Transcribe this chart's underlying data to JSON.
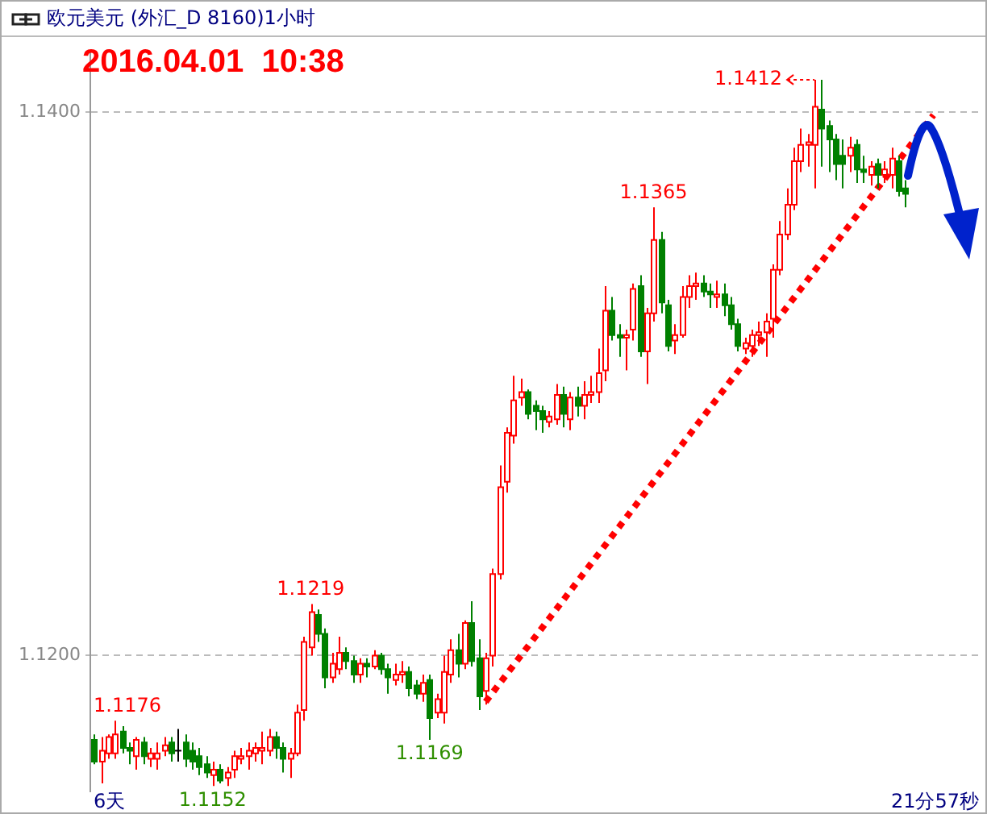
{
  "chart_data": {
    "type": "candlestick",
    "title": "欧元美元 (外汇_D 8160)1小时",
    "categories": [
      null,
      null,
      null,
      null,
      null,
      null,
      null,
      null,
      null,
      null,
      null,
      null,
      null,
      null,
      null,
      null,
      null,
      null,
      null,
      null,
      null,
      null,
      null,
      null,
      null,
      null,
      null,
      null,
      null,
      null,
      null,
      null,
      null,
      null,
      null,
      null,
      null,
      null,
      null,
      null,
      null,
      null,
      null,
      null,
      null,
      null,
      null,
      null,
      null,
      null,
      null,
      null,
      null,
      null,
      null,
      null,
      null,
      null,
      null,
      null,
      null,
      null,
      null,
      null,
      null,
      null,
      null,
      null,
      null,
      null,
      null,
      null,
      null,
      null,
      null,
      null,
      null,
      null,
      null,
      null,
      null,
      null,
      null,
      null,
      null,
      null,
      null,
      null,
      null,
      null,
      null,
      null,
      null,
      null,
      null,
      null,
      null,
      null,
      null,
      null,
      null,
      null,
      null,
      null,
      null,
      null,
      null,
      null,
      null,
      null,
      null,
      null,
      null,
      null,
      null,
      null,
      null,
      null,
      null,
      null,
      null,
      null,
      null,
      null,
      null,
      null,
      null
    ],
    "ohlc": [
      [
        1.1169,
        1.1171,
        1.116,
        1.1161
      ],
      [
        1.1161,
        1.117,
        1.1153,
        1.1165
      ],
      [
        1.1164,
        1.1171,
        1.1162,
        1.117
      ],
      [
        1.1164,
        1.1176,
        1.1162,
        1.1171
      ],
      [
        1.1172,
        1.1174,
        1.1164,
        1.1166
      ],
      [
        1.1166,
        1.1168,
        1.116,
        1.1165
      ],
      [
        1.1163,
        1.117,
        1.1158,
        1.1169
      ],
      [
        1.1168,
        1.117,
        1.116,
        1.1163
      ],
      [
        1.1162,
        1.1166,
        1.1159,
        1.1164
      ],
      [
        1.1162,
        1.1168,
        1.1158,
        1.1164
      ],
      [
        1.1165,
        1.117,
        1.1163,
        1.1167
      ],
      [
        1.1168,
        1.117,
        1.1161,
        1.1164
      ],
      [
        1.1165,
        1.1173,
        1.1161,
        1.1165
      ],
      [
        1.1168,
        1.1171,
        1.1159,
        1.1162
      ],
      [
        1.1165,
        1.1168,
        1.1158,
        1.1161
      ],
      [
        1.1163,
        1.1166,
        1.1156,
        1.1159
      ],
      [
        1.116,
        1.1163,
        1.1155,
        1.1157
      ],
      [
        1.1156,
        1.1161,
        1.1152,
        1.1158
      ],
      [
        1.1158,
        1.116,
        1.1153,
        1.1154
      ],
      [
        1.1155,
        1.1159,
        1.1152,
        1.1157
      ],
      [
        1.1158,
        1.1165,
        1.1155,
        1.1163
      ],
      [
        1.1162,
        1.1166,
        1.116,
        1.1163
      ],
      [
        1.1163,
        1.1168,
        1.1158,
        1.1165
      ],
      [
        1.1164,
        1.1168,
        1.1161,
        1.1166
      ],
      [
        1.1165,
        1.1172,
        1.116,
        1.1166
      ],
      [
        1.1165,
        1.1173,
        1.1163,
        1.117
      ],
      [
        1.117,
        1.1172,
        1.1162,
        1.1166
      ],
      [
        1.1166,
        1.1168,
        1.1157,
        1.1162
      ],
      [
        1.1162,
        1.1166,
        1.1155,
        1.1164
      ],
      [
        1.1164,
        1.1182,
        1.1163,
        1.1179
      ],
      [
        1.118,
        1.1207,
        1.1176,
        1.1205
      ],
      [
        1.1203,
        1.1219,
        1.12,
        1.1216
      ],
      [
        1.1215,
        1.1217,
        1.1205,
        1.1208
      ],
      [
        1.1208,
        1.121,
        1.1188,
        1.1192
      ],
      [
        1.1192,
        1.1201,
        1.119,
        1.1197
      ],
      [
        1.1195,
        1.1207,
        1.1193,
        1.1201
      ],
      [
        1.1201,
        1.1203,
        1.1195,
        1.1198
      ],
      [
        1.1198,
        1.12,
        1.119,
        1.1193
      ],
      [
        1.1193,
        1.1199,
        1.119,
        1.1197
      ],
      [
        1.1197,
        1.1199,
        1.1192,
        1.1196
      ],
      [
        1.1196,
        1.1202,
        1.1195,
        1.12
      ],
      [
        1.12,
        1.1201,
        1.1193,
        1.1195
      ],
      [
        1.1195,
        1.1197,
        1.1186,
        1.1192
      ],
      [
        1.1191,
        1.1197,
        1.1189,
        1.1193
      ],
      [
        1.1193,
        1.1198,
        1.119,
        1.1194
      ],
      [
        1.1194,
        1.1196,
        1.1185,
        1.1188
      ],
      [
        1.1189,
        1.1191,
        1.1184,
        1.1186
      ],
      [
        1.1186,
        1.1193,
        1.1183,
        1.119
      ],
      [
        1.1191,
        1.1193,
        1.1169,
        1.1177
      ],
      [
        1.1179,
        1.1186,
        1.1177,
        1.1184
      ],
      [
        1.1179,
        1.12,
        1.1175,
        1.1194
      ],
      [
        1.1193,
        1.1206,
        1.119,
        1.1202
      ],
      [
        1.1202,
        1.1208,
        1.1192,
        1.1197
      ],
      [
        1.1197,
        1.1213,
        1.1195,
        1.1212
      ],
      [
        1.1212,
        1.122,
        1.1196,
        1.1198
      ],
      [
        1.1199,
        1.1206,
        1.118,
        1.1185
      ],
      [
        1.1187,
        1.1201,
        1.1182,
        1.1199
      ],
      [
        1.12,
        1.1232,
        1.1196,
        1.123
      ],
      [
        1.123,
        1.127,
        1.1228,
        1.1262
      ],
      [
        1.1264,
        1.1284,
        1.126,
        1.1282
      ],
      [
        1.1281,
        1.1303,
        1.1278,
        1.1294
      ],
      [
        1.1295,
        1.1302,
        1.1292,
        1.1297
      ],
      [
        1.1297,
        1.1298,
        1.1287,
        1.1289
      ],
      [
        1.1292,
        1.1294,
        1.1283,
        1.129
      ],
      [
        1.129,
        1.1292,
        1.1282,
        1.1287
      ],
      [
        1.1286,
        1.129,
        1.1284,
        1.1288
      ],
      [
        1.1287,
        1.13,
        1.1285,
        1.1296
      ],
      [
        1.1296,
        1.1299,
        1.1284,
        1.1289
      ],
      [
        1.1287,
        1.1297,
        1.1283,
        1.1295
      ],
      [
        1.1295,
        1.1299,
        1.1288,
        1.1292
      ],
      [
        1.1292,
        1.1301,
        1.1287,
        1.1296
      ],
      [
        1.1296,
        1.1303,
        1.1293,
        1.1297
      ],
      [
        1.1297,
        1.1313,
        1.1293,
        1.1304
      ],
      [
        1.1305,
        1.1336,
        1.1301,
        1.1327
      ],
      [
        1.1327,
        1.1332,
        1.1316,
        1.1318
      ],
      [
        1.1318,
        1.1322,
        1.131,
        1.1317
      ],
      [
        1.1317,
        1.132,
        1.1305,
        1.1318
      ],
      [
        1.132,
        1.1337,
        1.1316,
        1.1335
      ],
      [
        1.1336,
        1.134,
        1.131,
        1.1312
      ],
      [
        1.1312,
        1.1328,
        1.13,
        1.1326
      ],
      [
        1.1326,
        1.1365,
        1.1323,
        1.1353
      ],
      [
        1.1353,
        1.1356,
        1.1326,
        1.133
      ],
      [
        1.1329,
        1.1331,
        1.1312,
        1.1314
      ],
      [
        1.1316,
        1.1322,
        1.1311,
        1.1318
      ],
      [
        1.1318,
        1.1336,
        1.1317,
        1.1332
      ],
      [
        1.1332,
        1.134,
        1.1328,
        1.1336
      ],
      [
        1.1336,
        1.1341,
        1.1331,
        1.1337
      ],
      [
        1.1337,
        1.134,
        1.1332,
        1.1334
      ],
      [
        1.1334,
        1.1337,
        1.1328,
        1.1333
      ],
      [
        1.1332,
        1.1338,
        1.1328,
        1.1333
      ],
      [
        1.1333,
        1.1337,
        1.1325,
        1.1329
      ],
      [
        1.1329,
        1.1332,
        1.132,
        1.1322
      ],
      [
        1.1322,
        1.1324,
        1.1312,
        1.1314
      ],
      [
        1.1313,
        1.1317,
        1.1311,
        1.1315
      ],
      [
        1.1314,
        1.132,
        1.131,
        1.1318
      ],
      [
        1.1318,
        1.1323,
        1.1314,
        1.1319
      ],
      [
        1.1319,
        1.1326,
        1.131,
        1.1323
      ],
      [
        1.1324,
        1.1344,
        1.1317,
        1.1342
      ],
      [
        1.1342,
        1.136,
        1.134,
        1.1355
      ],
      [
        1.1355,
        1.1372,
        1.1353,
        1.1366
      ],
      [
        1.1366,
        1.1387,
        1.1364,
        1.1382
      ],
      [
        1.1382,
        1.1394,
        1.1378,
        1.1388
      ],
      [
        1.1388,
        1.1392,
        1.138,
        1.1389
      ],
      [
        1.1388,
        1.1412,
        1.1372,
        1.1402
      ],
      [
        1.1401,
        1.1412,
        1.138,
        1.1394
      ],
      [
        1.1395,
        1.1397,
        1.1378,
        1.139
      ],
      [
        1.139,
        1.1392,
        1.1375,
        1.1381
      ],
      [
        1.1384,
        1.139,
        1.1372,
        1.1381
      ],
      [
        1.1384,
        1.1391,
        1.1378,
        1.1387
      ],
      [
        1.1388,
        1.139,
        1.1374,
        1.1379
      ],
      [
        1.1379,
        1.1384,
        1.1374,
        1.1378
      ],
      [
        1.1377,
        1.1382,
        1.1373,
        1.138
      ],
      [
        1.1381,
        1.1383,
        1.1372,
        1.1377
      ],
      [
        1.1377,
        1.1382,
        1.1374,
        1.1379
      ],
      [
        1.1377,
        1.1387,
        1.1372,
        1.1383
      ],
      [
        1.1382,
        1.1384,
        1.1369,
        1.1371
      ],
      [
        1.1372,
        1.1375,
        1.1365,
        1.137
      ],
      null,
      null,
      null,
      null,
      null,
      null,
      null,
      null,
      null,
      null
    ],
    "colors": [
      "#008000",
      "#ff0000",
      "#ff0000",
      "#ff0000",
      "#008000",
      "#008000",
      "#ff0000",
      "#008000",
      "#ff0000",
      "#ff0000",
      "#ff0000",
      "#008000",
      "#000000",
      "#008000",
      "#008000",
      "#008000",
      "#008000",
      "#ff0000",
      "#008000",
      "#ff0000",
      "#ff0000",
      "#ff0000",
      "#ff0000",
      "#ff0000",
      "#ff0000",
      "#ff0000",
      "#008000",
      "#008000",
      "#ff0000",
      "#ff0000",
      "#ff0000",
      "#ff0000",
      "#008000",
      "#008000",
      "#ff0000",
      "#ff0000",
      "#008000",
      "#008000",
      "#ff0000",
      "#008000",
      "#ff0000",
      "#008000",
      "#008000",
      "#ff0000",
      "#ff0000",
      "#008000",
      "#008000",
      "#ff0000",
      "#008000",
      "#ff0000",
      "#ff0000",
      "#ff0000",
      "#008000",
      "#ff0000",
      "#008000",
      "#008000",
      "#ff0000",
      "#ff0000",
      "#ff0000",
      "#ff0000",
      "#ff0000",
      "#ff0000",
      "#008000",
      "#008000",
      "#008000",
      "#ff0000",
      "#ff0000",
      "#008000",
      "#ff0000",
      "#008000",
      "#ff0000",
      "#ff0000",
      "#ff0000",
      "#ff0000",
      "#008000",
      "#008000",
      "#ff0000",
      "#ff0000",
      "#008000",
      "#ff0000",
      "#ff0000",
      "#008000",
      "#008000",
      "#ff0000",
      "#ff0000",
      "#ff0000",
      "#ff0000",
      "#008000",
      "#008000",
      "#ff0000",
      "#008000",
      "#008000",
      "#008000",
      "#ff0000",
      "#ff0000",
      "#ff0000",
      "#ff0000",
      "#ff0000",
      "#ff0000",
      "#ff0000",
      "#ff0000",
      "#ff0000",
      "#ff0000",
      "#ff0000",
      "#008000",
      "#008000",
      "#008000",
      "#008000",
      "#ff0000",
      "#008000",
      "#008000",
      "#ff0000",
      "#008000",
      "#ff0000",
      "#ff0000",
      "#008000",
      "#008000",
      null,
      null,
      null,
      null,
      null,
      null,
      null,
      null,
      null,
      null
    ],
    "series": [
      {
        "type": "line",
        "color": "#ff0000",
        "line_style": "dotted",
        "values": [
          null,
          null,
          null,
          null,
          null,
          null,
          null,
          null,
          null,
          null,
          null,
          null,
          null,
          null,
          null,
          null,
          null,
          null,
          null,
          null,
          null,
          null,
          null,
          null,
          null,
          null,
          null,
          null,
          null,
          null,
          null,
          null,
          null,
          null,
          null,
          null,
          null,
          null,
          null,
          null,
          null,
          null,
          null,
          null,
          null,
          null,
          null,
          null,
          null,
          null,
          null,
          null,
          null,
          null,
          null,
          null,
          1.1183,
          null,
          null,
          null,
          null,
          null,
          null,
          null,
          null,
          null,
          null,
          null,
          null,
          null,
          null,
          null,
          null,
          null,
          null,
          null,
          null,
          null,
          null,
          null,
          null,
          null,
          null,
          null,
          null,
          null,
          null,
          null,
          null,
          null,
          null,
          null,
          null,
          null,
          null,
          null,
          null,
          null,
          null,
          null,
          null,
          null,
          null,
          null,
          null,
          null,
          null,
          null,
          null,
          null,
          null,
          null,
          null,
          null,
          null,
          null,
          null,
          null,
          null,
          null,
          1.1399,
          null,
          null,
          null,
          null,
          null,
          null
        ]
      }
    ],
    "ylim": [
      1.115,
      1.1422
    ],
    "yticks": [
      {
        "value": 1.12,
        "label": "1.1200"
      },
      {
        "value": 1.14,
        "label": "1.1400"
      }
    ],
    "grid": "y",
    "legend": false,
    "tick_labels": "y",
    "annotations": [
      "2016.04.01  10:38",
      "6天",
      "21分57秒",
      {
        "text": "1.1176",
        "y": 1.1176
      },
      {
        "text": "1.1152",
        "y": 1.1152
      },
      {
        "text": "1.1219",
        "y": 1.1219
      },
      {
        "text": "1.1169",
        "y": 1.1169
      },
      {
        "text": "1.1365",
        "y": 1.1365
      },
      "1.1412"
    ]
  }
}
